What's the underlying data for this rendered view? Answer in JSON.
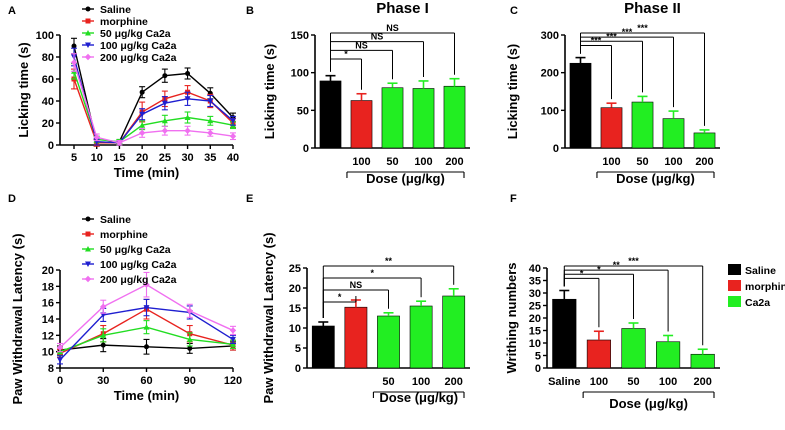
{
  "colors": {
    "saline": "#000000",
    "morphine": "#e8231f",
    "c50": "#22dd22",
    "c100": "#1f1fd0",
    "c200": "#f070f0",
    "bar_green": "#22ee22"
  },
  "chart_data": [
    {
      "id": "A",
      "letter": "A",
      "type": "line",
      "xlabel": "Time (min)",
      "ylabel": "Licking time (s)",
      "x": [
        5,
        10,
        15,
        20,
        25,
        30,
        35,
        40
      ],
      "xticks": [
        "5",
        "10",
        "15",
        "20",
        "25",
        "30",
        "35",
        "40"
      ],
      "yticks": [
        "0",
        "20",
        "40",
        "60",
        "80",
        "100"
      ],
      "ylim": [
        0,
        100
      ],
      "legend": [
        "Saline",
        "morphine",
        "50 μg/kg Ca2a",
        "100 μg/kg Ca2a",
        "200 μg/kg Ca2a"
      ],
      "series": [
        {
          "name": "Saline",
          "color": "#000000",
          "values": [
            90,
            2,
            3,
            48,
            63,
            65,
            47,
            25
          ],
          "err": [
            7,
            3,
            2,
            5,
            6,
            5,
            5,
            4
          ]
        },
        {
          "name": "morphine",
          "color": "#e8231f",
          "values": [
            60,
            2,
            2,
            30,
            42,
            48,
            40,
            20
          ],
          "err": [
            9,
            3,
            2,
            9,
            7,
            6,
            6,
            4
          ]
        },
        {
          "name": "50 μg/kg Ca2a",
          "color": "#22dd22",
          "values": [
            67,
            5,
            3,
            18,
            22,
            25,
            22,
            18
          ],
          "err": [
            7,
            3,
            2,
            4,
            5,
            5,
            4,
            3
          ]
        },
        {
          "name": "100 μg/kg Ca2a",
          "color": "#1f1fd0",
          "values": [
            80,
            3,
            2,
            28,
            38,
            42,
            40,
            22
          ],
          "err": [
            8,
            3,
            2,
            5,
            6,
            6,
            5,
            4
          ]
        },
        {
          "name": "200 μg/kg Ca2a",
          "color": "#f070f0",
          "values": [
            75,
            7,
            2,
            11,
            13,
            13,
            11,
            8
          ],
          "err": [
            8,
            3,
            2,
            4,
            4,
            4,
            3,
            3
          ]
        }
      ]
    },
    {
      "id": "B",
      "letter": "B",
      "type": "bar",
      "title": "Phase I",
      "ylabel": "Licking time (s)",
      "ylim": [
        0,
        150
      ],
      "yticks": [
        "0",
        "50",
        "100",
        "150"
      ],
      "categories": [
        "",
        "100",
        "50",
        "100",
        "200"
      ],
      "values": [
        89,
        63,
        80,
        79,
        82
      ],
      "err": [
        7,
        9,
        6,
        10,
        10
      ],
      "bar_colors": [
        "#000000",
        "#e8231f",
        "#22ee22",
        "#22ee22",
        "#22ee22"
      ],
      "dose_label": "Dose (μg/kg)",
      "sig": [
        {
          "to": 1,
          "label": "*"
        },
        {
          "to": 2,
          "label": "NS"
        },
        {
          "to": 3,
          "label": "NS"
        },
        {
          "to": 4,
          "label": "NS"
        }
      ]
    },
    {
      "id": "C",
      "letter": "C",
      "type": "bar",
      "title": "Phase II",
      "ylabel": "Licking time (s)",
      "ylim": [
        0,
        300
      ],
      "yticks": [
        "0",
        "100",
        "200",
        "300"
      ],
      "categories": [
        "",
        "100",
        "50",
        "100",
        "200"
      ],
      "values": [
        225,
        107,
        122,
        78,
        40
      ],
      "err": [
        15,
        12,
        15,
        20,
        8
      ],
      "bar_colors": [
        "#000000",
        "#e8231f",
        "#22ee22",
        "#22ee22",
        "#22ee22"
      ],
      "dose_label": "Dose (μg/kg)",
      "sig": [
        {
          "to": 1,
          "label": "***"
        },
        {
          "to": 2,
          "label": "***"
        },
        {
          "to": 3,
          "label": "***"
        },
        {
          "to": 4,
          "label": "***"
        }
      ]
    },
    {
      "id": "D",
      "letter": "D",
      "type": "line",
      "xlabel": "Time (min)",
      "ylabel": "Paw Withdrawal Latency (s)",
      "x": [
        0,
        30,
        60,
        90,
        120
      ],
      "xticks": [
        "0",
        "30",
        "60",
        "90",
        "120"
      ],
      "yticks": [
        "8",
        "10",
        "12",
        "14",
        "16",
        "18",
        "20"
      ],
      "ylim": [
        8,
        20
      ],
      "legend": [
        "Saline",
        "morphine",
        "50 μg/kg Ca2a",
        "100 μg/kg Ca2a",
        "200 μg/kg Ca2a"
      ],
      "series": [
        {
          "name": "Saline",
          "color": "#000000",
          "values": [
            10.2,
            10.8,
            10.6,
            10.4,
            10.7
          ],
          "err": [
            0.5,
            0.8,
            0.9,
            0.6,
            0.5
          ]
        },
        {
          "name": "morphine",
          "color": "#e8231f",
          "values": [
            9.8,
            12.2,
            15.2,
            12.2,
            10.8
          ],
          "err": [
            0.5,
            1.0,
            1.2,
            1.0,
            0.6
          ]
        },
        {
          "name": "50 μg/kg Ca2a",
          "color": "#22dd22",
          "values": [
            10.0,
            12.0,
            13.0,
            11.5,
            10.9
          ],
          "err": [
            0.5,
            0.8,
            0.8,
            0.8,
            0.5
          ]
        },
        {
          "name": "100 μg/kg Ca2a",
          "color": "#1f1fd0",
          "values": [
            9.0,
            14.5,
            15.4,
            14.8,
            11.5
          ],
          "err": [
            0.5,
            0.8,
            1.0,
            0.8,
            0.5
          ]
        },
        {
          "name": "200 μg/kg Ca2a",
          "color": "#f070f0",
          "values": [
            10.5,
            15.5,
            18.2,
            15.0,
            12.6
          ],
          "err": [
            0.5,
            0.8,
            1.5,
            0.8,
            0.5
          ]
        }
      ]
    },
    {
      "id": "E",
      "letter": "E",
      "type": "bar",
      "title": "",
      "ylabel": "Paw Withdrawal Latency (s)",
      "ylim": [
        0,
        25
      ],
      "yticks": [
        "0",
        "5",
        "10",
        "15",
        "20",
        "25"
      ],
      "categories": [
        "",
        "",
        "50",
        "100",
        "200"
      ],
      "values": [
        10.5,
        15.2,
        13.0,
        15.5,
        18.0
      ],
      "err": [
        1.0,
        1.8,
        0.8,
        1.2,
        1.8
      ],
      "bar_colors": [
        "#000000",
        "#e8231f",
        "#22ee22",
        "#22ee22",
        "#22ee22"
      ],
      "dose_label": "Dose (μg/kg)",
      "sig": [
        {
          "to": 1,
          "label": "*"
        },
        {
          "to": 2,
          "label": "NS"
        },
        {
          "to": 3,
          "label": "*"
        },
        {
          "to": 4,
          "label": "**"
        }
      ]
    },
    {
      "id": "F",
      "letter": "F",
      "type": "bar",
      "title": "",
      "ylabel": "Writhing numbers",
      "ylim": [
        0,
        40
      ],
      "yticks": [
        "0",
        "5",
        "10",
        "15",
        "20",
        "25",
        "30",
        "35",
        "40"
      ],
      "categories": [
        "Saline",
        "100",
        "50",
        "100",
        "200"
      ],
      "values": [
        27.5,
        11.2,
        15.8,
        10.5,
        5.5
      ],
      "err": [
        3.5,
        3.5,
        2.2,
        2.5,
        2.0
      ],
      "bar_colors": [
        "#000000",
        "#e8231f",
        "#22ee22",
        "#22ee22",
        "#22ee22"
      ],
      "dose_label": "Dose (μg/kg)",
      "legend": [
        "Saline",
        "morphine",
        "Ca2a"
      ],
      "legend_colors": [
        "#000000",
        "#e8231f",
        "#22ee22"
      ],
      "sig": [
        {
          "to": 1,
          "label": "*"
        },
        {
          "to": 2,
          "label": "*"
        },
        {
          "to": 3,
          "label": "**"
        },
        {
          "to": 4,
          "label": "***"
        }
      ]
    }
  ]
}
